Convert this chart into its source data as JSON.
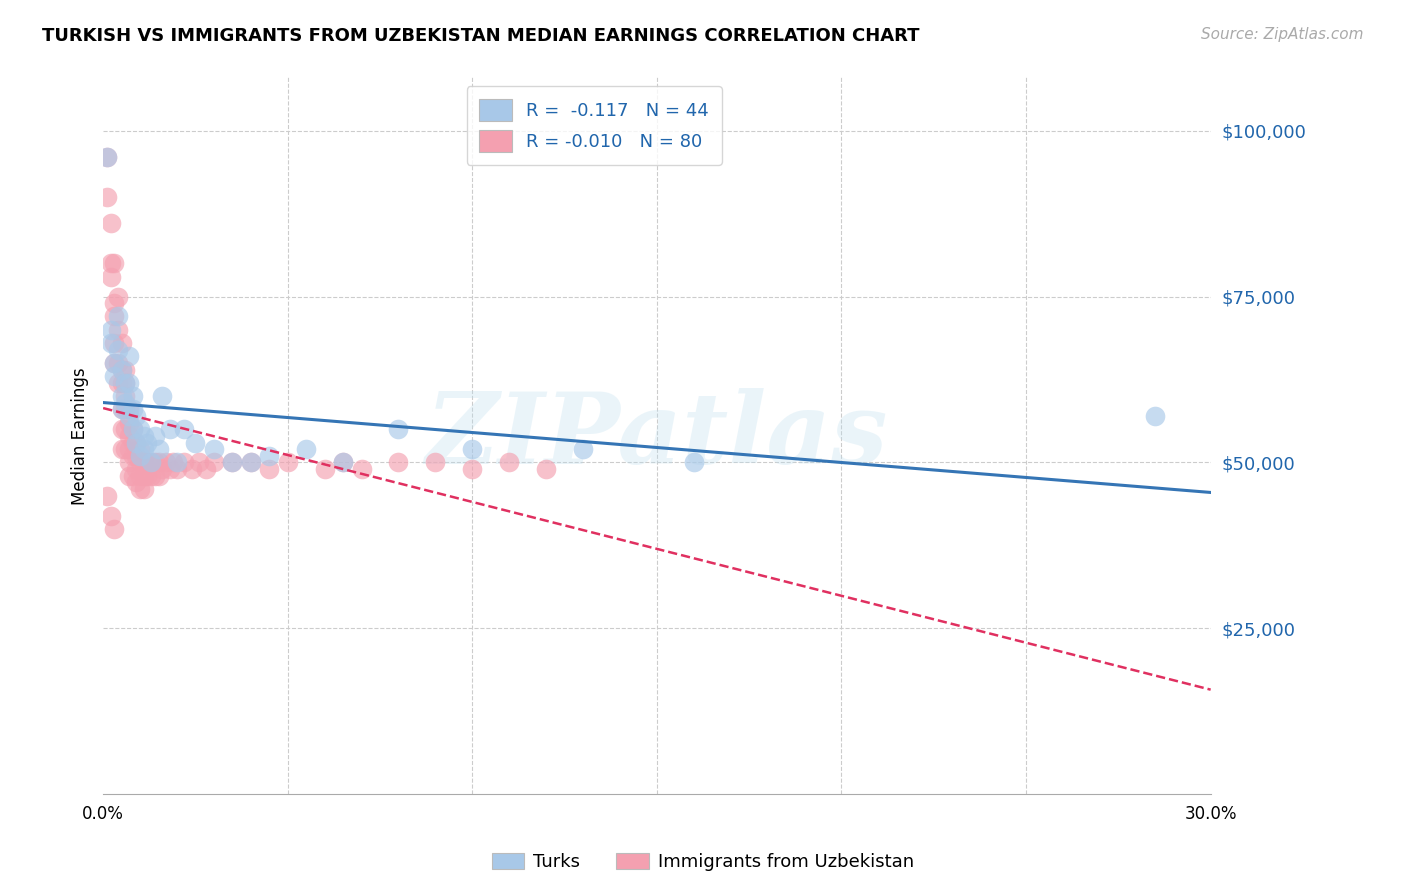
{
  "title": "TURKISH VS IMMIGRANTS FROM UZBEKISTAN MEDIAN EARNINGS CORRELATION CHART",
  "source": "Source: ZipAtlas.com",
  "ylabel": "Median Earnings",
  "yticks": [
    0,
    25000,
    50000,
    75000,
    100000
  ],
  "ytick_labels": [
    "",
    "$25,000",
    "$50,000",
    "$75,000",
    "$100,000"
  ],
  "xmin": 0.0,
  "xmax": 0.3,
  "ymin": 0,
  "ymax": 108000,
  "watermark": "ZIPatlas",
  "legend_r1": "R =  -0.117   N = 44",
  "legend_r2": "R = -0.010   N = 80",
  "legend_label1": "Turks",
  "legend_label2": "Immigrants from Uzbekistan",
  "blue_color": "#a8c8e8",
  "pink_color": "#f4a0b0",
  "blue_line_color": "#3575b5",
  "pink_line_color": "#e03060",
  "turks_x": [
    0.001,
    0.002,
    0.002,
    0.003,
    0.003,
    0.004,
    0.004,
    0.005,
    0.005,
    0.005,
    0.006,
    0.006,
    0.007,
    0.007,
    0.007,
    0.008,
    0.008,
    0.008,
    0.009,
    0.009,
    0.01,
    0.01,
    0.011,
    0.011,
    0.012,
    0.013,
    0.014,
    0.015,
    0.016,
    0.018,
    0.02,
    0.022,
    0.025,
    0.03,
    0.035,
    0.04,
    0.045,
    0.055,
    0.065,
    0.08,
    0.1,
    0.13,
    0.16,
    0.285
  ],
  "turks_y": [
    96000,
    70000,
    68000,
    65000,
    63000,
    72000,
    67000,
    64000,
    60000,
    58000,
    62000,
    59000,
    66000,
    62000,
    57000,
    60000,
    55000,
    58000,
    57000,
    53000,
    55000,
    51000,
    54000,
    52000,
    53000,
    50000,
    54000,
    52000,
    60000,
    55000,
    50000,
    55000,
    53000,
    52000,
    50000,
    50000,
    51000,
    52000,
    50000,
    55000,
    52000,
    52000,
    50000,
    57000
  ],
  "uzbek_x": [
    0.001,
    0.001,
    0.002,
    0.002,
    0.002,
    0.003,
    0.003,
    0.003,
    0.003,
    0.003,
    0.004,
    0.004,
    0.004,
    0.004,
    0.005,
    0.005,
    0.005,
    0.005,
    0.005,
    0.005,
    0.006,
    0.006,
    0.006,
    0.006,
    0.006,
    0.006,
    0.007,
    0.007,
    0.007,
    0.007,
    0.007,
    0.007,
    0.008,
    0.008,
    0.008,
    0.008,
    0.009,
    0.009,
    0.009,
    0.009,
    0.01,
    0.01,
    0.01,
    0.01,
    0.011,
    0.011,
    0.011,
    0.012,
    0.012,
    0.013,
    0.013,
    0.014,
    0.014,
    0.015,
    0.015,
    0.016,
    0.017,
    0.018,
    0.019,
    0.02,
    0.022,
    0.024,
    0.026,
    0.028,
    0.03,
    0.035,
    0.04,
    0.045,
    0.05,
    0.06,
    0.065,
    0.07,
    0.08,
    0.09,
    0.1,
    0.11,
    0.12,
    0.001,
    0.002,
    0.003
  ],
  "uzbek_y": [
    96000,
    90000,
    86000,
    80000,
    78000,
    80000,
    74000,
    72000,
    68000,
    65000,
    75000,
    70000,
    65000,
    62000,
    68000,
    64000,
    62000,
    58000,
    55000,
    52000,
    64000,
    62000,
    60000,
    58000,
    55000,
    52000,
    58000,
    56000,
    54000,
    52000,
    50000,
    48000,
    55000,
    53000,
    51000,
    48000,
    53000,
    51000,
    49000,
    47000,
    52000,
    50000,
    48000,
    46000,
    50000,
    48000,
    46000,
    50000,
    48000,
    50000,
    48000,
    50000,
    48000,
    50000,
    48000,
    49000,
    50000,
    49000,
    50000,
    49000,
    50000,
    49000,
    50000,
    49000,
    50000,
    50000,
    50000,
    49000,
    50000,
    49000,
    50000,
    49000,
    50000,
    50000,
    49000,
    50000,
    49000,
    45000,
    42000,
    40000
  ]
}
